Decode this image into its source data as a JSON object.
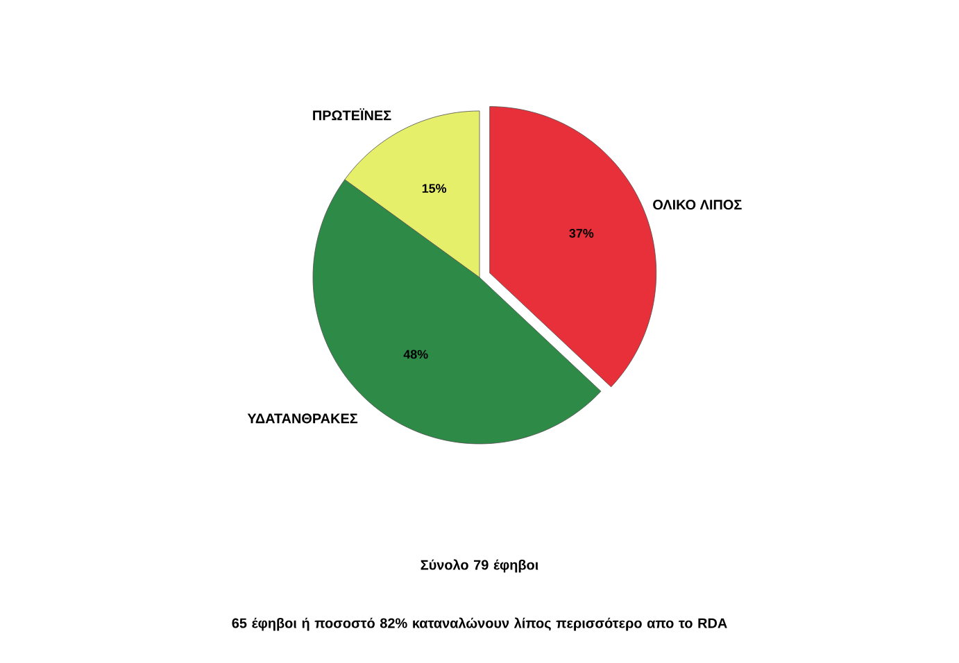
{
  "chart_data": {
    "type": "pie",
    "categories": [
      "ΟΛΙΚΟ ΛΙΠΟΣ",
      "ΥΔΑΤΑΝΘΡΑΚΕΣ",
      "ΠΡΩΤΕΪΝΕΣ"
    ],
    "values": [
      37,
      48,
      15
    ],
    "colors": [
      "#e8303a",
      "#2e8b47",
      "#e6ef6a"
    ],
    "value_labels": [
      "37%",
      "48%",
      "15%"
    ],
    "annotations": [
      "Σύνολο 79 έφηβοι",
      "65 έφηβοι ή ποσοστό 82%  καταναλώνουν λίπος  περισσότερο απο το RDA"
    ]
  }
}
